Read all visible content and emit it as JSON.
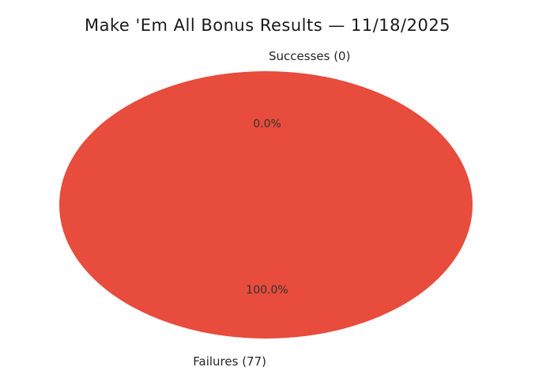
{
  "chart_data": {
    "type": "pie",
    "title": "Make 'Em All Bonus Results — 11/18/2025",
    "categories": [
      "Successes",
      "Failures"
    ],
    "values": [
      0,
      77
    ],
    "labels": [
      "Successes (0)",
      "Failures (77)"
    ],
    "percent_labels": [
      "0.0%",
      "100.0%"
    ],
    "colors": [
      "#e74c3c",
      "#e74c3c"
    ],
    "background_color": "#ffffff",
    "text_color": "#262626",
    "legend": "none",
    "start_angle_deg": 90,
    "label_distance": 1.1,
    "pct_distance": 0.6,
    "notes": "Single visible wedge (Failures) fills 100% of the pie; Successes wedge has zero area. Labels placed matplotlib-style at top (Successes) and bottom (Failures)."
  }
}
